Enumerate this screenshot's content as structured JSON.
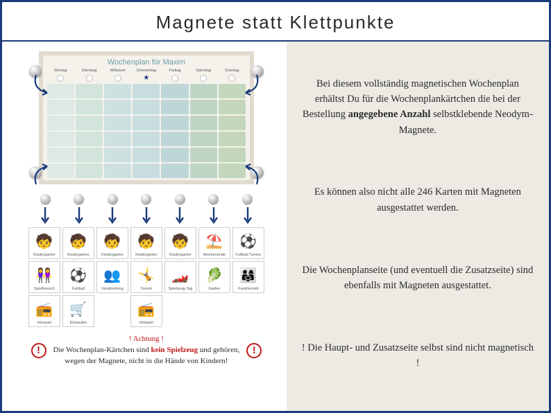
{
  "title": "Magnete statt Klettpunkte",
  "plan": {
    "heading": "Wochenplan für Maxim",
    "days": [
      "Montag",
      "Dienstag",
      "Mittwoch",
      "Donnerstag",
      "Freitag",
      "Samstag",
      "Sonntag"
    ],
    "col_colors": [
      "#dce9e4",
      "#d2e4dc",
      "#cde2e0",
      "#c7dde0",
      "#bfd6d8",
      "#bfd6c7",
      "#c3d7bd"
    ],
    "star_day_index": 3,
    "rows": 6,
    "board_bg": "#f5f2ec",
    "board_border": "#e1dbcf",
    "title_color": "#6a9aa5"
  },
  "corner_magnets": 4,
  "magnet_cols": 7,
  "cards": {
    "row1": [
      {
        "label": "Kindergarten",
        "emoji": "🧒"
      },
      {
        "label": "Kindergarten",
        "emoji": "🧒"
      },
      {
        "label": "Kindergarten",
        "emoji": "🧒"
      },
      {
        "label": "Kindergarten",
        "emoji": "🧒"
      },
      {
        "label": "Kindergarten",
        "emoji": "🧒"
      },
      {
        "label": "Wochenende",
        "emoji": "⛱️"
      },
      {
        "label": "Fußball Turnier",
        "emoji": "⚽"
      }
    ],
    "row2": [
      {
        "label": "Spielbesuch",
        "emoji": "👭"
      },
      {
        "label": "Fußball",
        "emoji": "⚽"
      },
      {
        "label": "Verabredung",
        "emoji": "👥"
      },
      {
        "label": "Turnen",
        "emoji": "🤸"
      },
      {
        "label": "Spielzeug-Tag",
        "emoji": "🏎️"
      },
      {
        "label": "Garten",
        "emoji": "🥬"
      },
      {
        "label": "Familienzeit",
        "emoji": "👨‍👩‍👧"
      }
    ],
    "row3": [
      {
        "label": "Hörspiel",
        "emoji": "📻"
      },
      {
        "label": "Einkaufen",
        "emoji": "🛒"
      },
      {
        "empty": true
      },
      {
        "label": "Hörspiel",
        "emoji": "📻"
      },
      {
        "empty": true
      },
      {
        "empty": true
      },
      {
        "empty": true
      }
    ]
  },
  "warning": {
    "heading": "! Achtung !",
    "line1_a": "Die Wochenplan-Kärtchen sind ",
    "line1_b": "kein Spielzeug",
    "line1_c": " und gehören,",
    "line2": "wegen der Magnete, nicht in die Hände von Kindern!"
  },
  "info": {
    "p1_a": "Bei diesem vollständig magnetischen Wochenplan erhältst Du für die Wochenplankärtchen die  bei der Bestellung ",
    "p1_b": "angegebene Anzahl",
    "p1_c": " selbstklebende Neodym-Magnete.",
    "p2": "Es können also nicht alle 246 Karten mit Magneten ausgestattet werden.",
    "p3": "Die Wochenplanseite (und eventuell die Zusatzseite) sind ebenfalls mit Magneten ausgestattet.",
    "p4": "! Die Haupt- und Zusatzseite selbst sind nicht magnetisch !"
  },
  "colors": {
    "accent": "#1a3a7a",
    "frame_bg": "#ffffff",
    "right_bg": "#eceae3",
    "warn_red": "#c01818"
  }
}
